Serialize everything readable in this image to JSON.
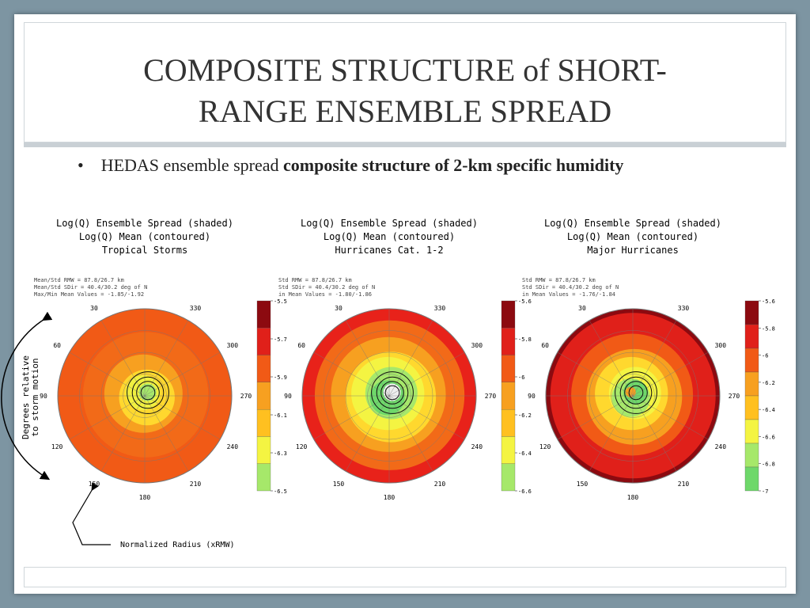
{
  "title": [
    "COMPOSITE STRUCTURE of SHORT-",
    "RANGE ENSEMBLE SPREAD"
  ],
  "bullet": {
    "text": "HEDAS ensemble spread ",
    "bold": "composite structure of 2-km specific humidity"
  },
  "panels": [
    {
      "title": [
        "Log(Q) Ensemble Spread (shaded)",
        "Log(Q) Mean (contoured)",
        "Tropical Storms"
      ],
      "stats": [
        "Mean/Std RMW  = 87.8/26.7 km",
        "Mean/Std SDir = 40.4/30.2 deg of N",
        "Max/Min Mean Values = -1.85/-1.92"
      ],
      "azimuths": [
        "30",
        "60",
        "90",
        "120",
        "150",
        "180",
        "210",
        "240",
        "270",
        "300",
        "330"
      ],
      "colorbar": [
        "-5.5",
        "-5.7",
        "-5.9",
        "-6.1",
        "-6.3",
        "-6.5"
      ]
    },
    {
      "title": [
        "Log(Q) Ensemble Spread (shaded)",
        "Log(Q) Mean (contoured)",
        "Hurricanes Cat. 1-2"
      ],
      "stats": [
        "Std RMW  = 87.8/26.7 km",
        "Std SDir = 40.4/30.2 deg of N",
        "in Mean Values = -1.80/-1.86"
      ],
      "azimuths": [
        "30",
        "60",
        "90",
        "120",
        "150",
        "180",
        "210",
        "240",
        "270",
        "300",
        "330"
      ],
      "colorbar": [
        "-5.6",
        "-5.8",
        "-6",
        "-6.2",
        "-6.4",
        "-6.6"
      ]
    },
    {
      "title": [
        "Log(Q) Ensemble Spread (shaded)",
        "Log(Q) Mean (contoured)",
        "Major Hurricanes"
      ],
      "stats": [
        "Std RMW  = 87.8/26.7 km",
        "Std SDir = 40.4/30.2 deg of N",
        "in Mean Values = -1.76/-1.84"
      ],
      "azimuths": [
        "30",
        "60",
        "90",
        "120",
        "150",
        "180",
        "210",
        "240",
        "270",
        "300",
        "330"
      ],
      "colorbar": [
        "-5.6",
        "-5.8",
        "-6",
        "-6.2",
        "-6.4",
        "-6.6",
        "-6.8",
        "-7"
      ]
    }
  ],
  "annotations": {
    "direction_label": [
      "Degrees relative",
      "to storm motion"
    ],
    "radius_label": "Normalized Radius (xRMW)"
  }
}
